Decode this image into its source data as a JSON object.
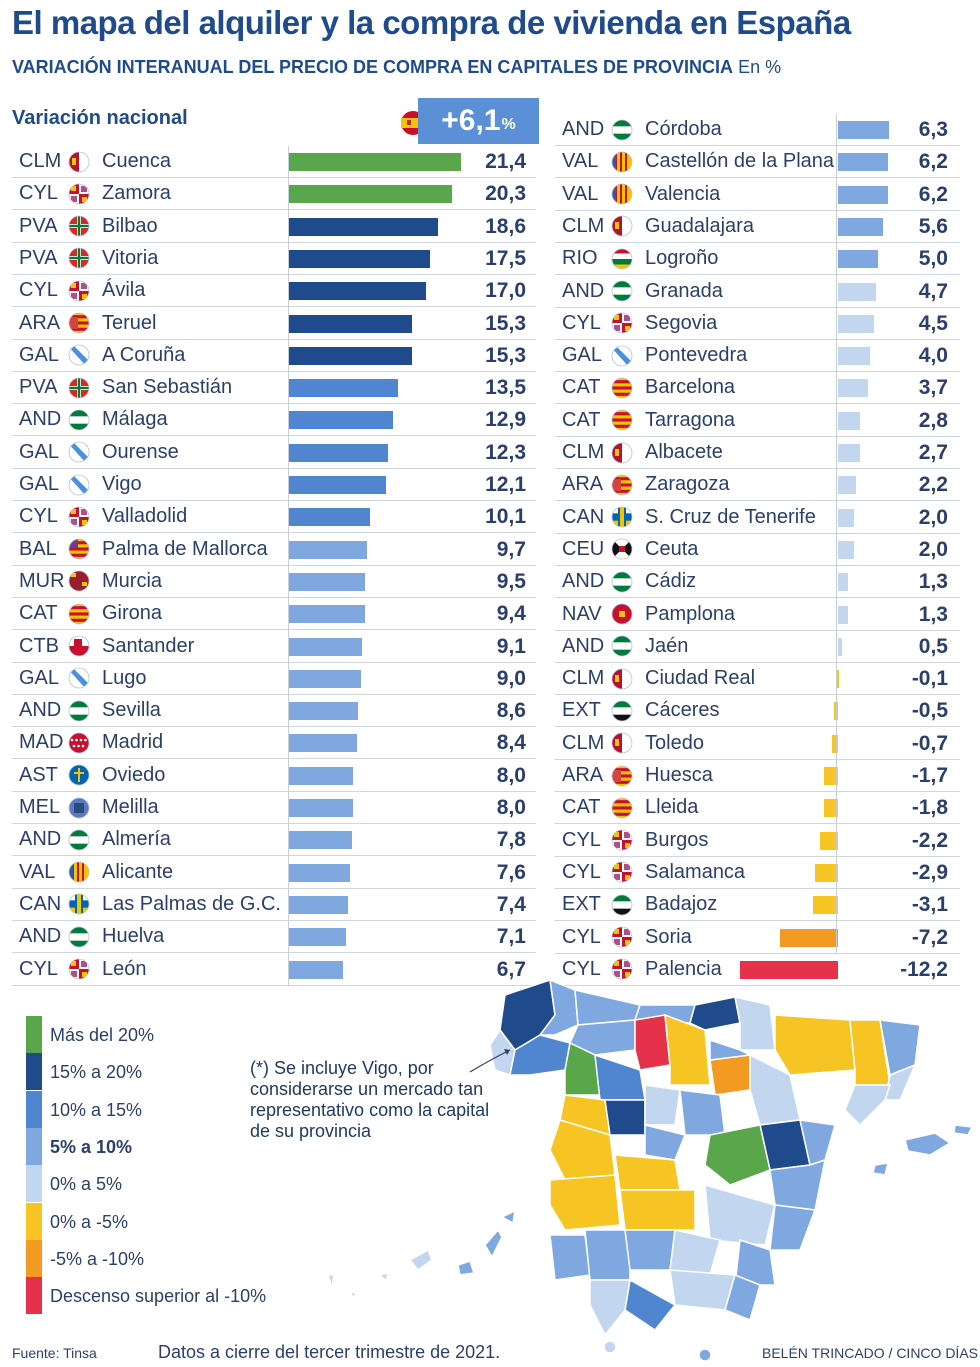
{
  "header": {
    "title": "El mapa del alquiler y la compra de vivienda en España",
    "subtitle_bold": "VARIACIÓN INTERANUAL DEL PRECIO DE COMPRA EN CAPITALES DE PROVINCIA",
    "subtitle_unit": "En %"
  },
  "national": {
    "label": "Variación nacional",
    "value": "+6,1",
    "unit": "%"
  },
  "chart_data": {
    "type": "bar",
    "title": "Variación interanual del precio de compra en capitales de provincia",
    "ylabel": "En %",
    "national_value": 6.1,
    "xlim": [
      -12.2,
      21.4
    ],
    "left_column": [
      {
        "code": "CLM",
        "city": "Cuenca",
        "value": 21.4,
        "label": "21,4",
        "flag": "clm",
        "color": "#5aa64a"
      },
      {
        "code": "CYL",
        "city": "Zamora",
        "value": 20.3,
        "label": "20,3",
        "flag": "cyl",
        "color": "#5aa64a"
      },
      {
        "code": "PVA",
        "city": "Bilbao",
        "value": 18.6,
        "label": "18,6",
        "flag": "pva",
        "color": "#1f4b8c"
      },
      {
        "code": "PVA",
        "city": "Vitoria",
        "value": 17.5,
        "label": "17,5",
        "flag": "pva",
        "color": "#1f4b8c"
      },
      {
        "code": "CYL",
        "city": "Ávila",
        "value": 17.0,
        "label": "17,0",
        "flag": "cyl",
        "color": "#1f4b8c"
      },
      {
        "code": "ARA",
        "city": "Teruel",
        "value": 15.3,
        "label": "15,3",
        "flag": "ara",
        "color": "#1f4b8c"
      },
      {
        "code": "GAL",
        "city": "A Coruña",
        "value": 15.3,
        "label": "15,3",
        "flag": "gal",
        "color": "#1f4b8c"
      },
      {
        "code": "PVA",
        "city": "San Sebastián",
        "value": 13.5,
        "label": "13,5",
        "flag": "pva",
        "color": "#4f86cf"
      },
      {
        "code": "AND",
        "city": "Málaga",
        "value": 12.9,
        "label": "12,9",
        "flag": "and",
        "color": "#4f86cf"
      },
      {
        "code": "GAL",
        "city": "Ourense",
        "value": 12.3,
        "label": "12,3",
        "flag": "gal",
        "color": "#4f86cf"
      },
      {
        "code": "GAL",
        "city": "Vigo",
        "value": 12.1,
        "label": "12,1",
        "flag": "gal",
        "color": "#4f86cf"
      },
      {
        "code": "CYL",
        "city": "Valladolid",
        "value": 10.1,
        "label": "10,1",
        "flag": "cyl",
        "color": "#4f86cf"
      },
      {
        "code": "BAL",
        "city": "Palma de Mallorca",
        "value": 9.7,
        "label": "9,7",
        "flag": "bal",
        "color": "#7fa7e0"
      },
      {
        "code": "MUR",
        "city": "Murcia",
        "value": 9.5,
        "label": "9,5",
        "flag": "mur",
        "color": "#7fa7e0"
      },
      {
        "code": "CAT",
        "city": "Girona",
        "value": 9.4,
        "label": "9,4",
        "flag": "cat",
        "color": "#7fa7e0"
      },
      {
        "code": "CTB",
        "city": "Santander",
        "value": 9.1,
        "label": "9,1",
        "flag": "ctb",
        "color": "#7fa7e0"
      },
      {
        "code": "GAL",
        "city": "Lugo",
        "value": 9.0,
        "label": "9,0",
        "flag": "gal",
        "color": "#7fa7e0"
      },
      {
        "code": "AND",
        "city": "Sevilla",
        "value": 8.6,
        "label": "8,6",
        "flag": "and",
        "color": "#7fa7e0"
      },
      {
        "code": "MAD",
        "city": "Madrid",
        "value": 8.4,
        "label": "8,4",
        "flag": "mad",
        "color": "#7fa7e0"
      },
      {
        "code": "AST",
        "city": "Oviedo",
        "value": 8.0,
        "label": "8,0",
        "flag": "ast",
        "color": "#7fa7e0"
      },
      {
        "code": "MEL",
        "city": "Melilla",
        "value": 8.0,
        "label": "8,0",
        "flag": "mel",
        "color": "#7fa7e0"
      },
      {
        "code": "AND",
        "city": "Almería",
        "value": 7.8,
        "label": "7,8",
        "flag": "and",
        "color": "#7fa7e0"
      },
      {
        "code": "VAL",
        "city": "Alicante",
        "value": 7.6,
        "label": "7,6",
        "flag": "val",
        "color": "#7fa7e0"
      },
      {
        "code": "CAN",
        "city": "Las Palmas de G.C.",
        "value": 7.4,
        "label": "7,4",
        "flag": "can",
        "color": "#7fa7e0"
      },
      {
        "code": "AND",
        "city": "Huelva",
        "value": 7.1,
        "label": "7,1",
        "flag": "and",
        "color": "#7fa7e0"
      },
      {
        "code": "CYL",
        "city": "León",
        "value": 6.7,
        "label": "6,7",
        "flag": "cyl",
        "color": "#7fa7e0"
      }
    ],
    "right_column": [
      {
        "code": "AND",
        "city": "Córdoba",
        "value": 6.3,
        "label": "6,3",
        "flag": "and",
        "color": "#7fa7e0"
      },
      {
        "code": "VAL",
        "city": "Castellón de la Plana",
        "value": 6.2,
        "label": "6,2",
        "flag": "val",
        "color": "#7fa7e0"
      },
      {
        "code": "VAL",
        "city": "Valencia",
        "value": 6.2,
        "label": "6,2",
        "flag": "val",
        "color": "#7fa7e0"
      },
      {
        "code": "CLM",
        "city": "Guadalajara",
        "value": 5.6,
        "label": "5,6",
        "flag": "clm",
        "color": "#7fa7e0"
      },
      {
        "code": "RIO",
        "city": "Logroño",
        "value": 5.0,
        "label": "5,0",
        "flag": "rio",
        "color": "#7fa7e0"
      },
      {
        "code": "AND",
        "city": "Granada",
        "value": 4.7,
        "label": "4,7",
        "flag": "and",
        "color": "#c3d6f0"
      },
      {
        "code": "CYL",
        "city": "Segovia",
        "value": 4.5,
        "label": "4,5",
        "flag": "cyl",
        "color": "#c3d6f0"
      },
      {
        "code": "GAL",
        "city": "Pontevedra",
        "value": 4.0,
        "label": "4,0",
        "flag": "gal",
        "color": "#c3d6f0"
      },
      {
        "code": "CAT",
        "city": "Barcelona",
        "value": 3.7,
        "label": "3,7",
        "flag": "cat",
        "color": "#c3d6f0"
      },
      {
        "code": "CAT",
        "city": "Tarragona",
        "value": 2.8,
        "label": "2,8",
        "flag": "cat",
        "color": "#c3d6f0"
      },
      {
        "code": "CLM",
        "city": "Albacete",
        "value": 2.7,
        "label": "2,7",
        "flag": "clm",
        "color": "#c3d6f0"
      },
      {
        "code": "ARA",
        "city": "Zaragoza",
        "value": 2.2,
        "label": "2,2",
        "flag": "ara",
        "color": "#c3d6f0"
      },
      {
        "code": "CAN",
        "city": "S. Cruz de Tenerife",
        "value": 2.0,
        "label": "2,0",
        "flag": "can",
        "color": "#c3d6f0"
      },
      {
        "code": "CEU",
        "city": "Ceuta",
        "value": 2.0,
        "label": "2,0",
        "flag": "ceu",
        "color": "#c3d6f0"
      },
      {
        "code": "AND",
        "city": "Cádiz",
        "value": 1.3,
        "label": "1,3",
        "flag": "and",
        "color": "#c3d6f0"
      },
      {
        "code": "NAV",
        "city": "Pamplona",
        "value": 1.3,
        "label": "1,3",
        "flag": "nav",
        "color": "#c3d6f0"
      },
      {
        "code": "AND",
        "city": "Jaén",
        "value": 0.5,
        "label": "0,5",
        "flag": "and",
        "color": "#c3d6f0"
      },
      {
        "code": "CLM",
        "city": "Ciudad Real",
        "value": -0.1,
        "label": "-0,1",
        "flag": "clm",
        "color": "#f6c423"
      },
      {
        "code": "EXT",
        "city": "Cáceres",
        "value": -0.5,
        "label": "-0,5",
        "flag": "ext",
        "color": "#f6c423"
      },
      {
        "code": "CLM",
        "city": "Toledo",
        "value": -0.7,
        "label": "-0,7",
        "flag": "clm",
        "color": "#f6c423"
      },
      {
        "code": "ARA",
        "city": "Huesca",
        "value": -1.7,
        "label": "-1,7",
        "flag": "ara",
        "color": "#f6c423"
      },
      {
        "code": "CAT",
        "city": "Lleida",
        "value": -1.8,
        "label": "-1,8",
        "flag": "cat",
        "color": "#f6c423"
      },
      {
        "code": "CYL",
        "city": "Burgos",
        "value": -2.2,
        "label": "-2,2",
        "flag": "cyl",
        "color": "#f6c423"
      },
      {
        "code": "CYL",
        "city": "Salamanca",
        "value": -2.9,
        "label": "-2,9",
        "flag": "cyl",
        "color": "#f6c423"
      },
      {
        "code": "EXT",
        "city": "Badajoz",
        "value": -3.1,
        "label": "-3,1",
        "flag": "ext",
        "color": "#f6c423"
      },
      {
        "code": "CYL",
        "city": "Soria",
        "value": -7.2,
        "label": "-7,2",
        "flag": "cyl",
        "color": "#f39a22"
      },
      {
        "code": "CYL",
        "city": "Palencia",
        "value": -12.2,
        "label": "-12,2",
        "flag": "cyl",
        "color": "#e5314a"
      }
    ]
  },
  "legend": [
    {
      "label": "Más del 20%",
      "color": "#5aa64a",
      "bold": false
    },
    {
      "label": "15% a 20%",
      "color": "#1f4b8c",
      "bold": false
    },
    {
      "label": "10% a 15%",
      "color": "#4f86cf",
      "bold": false
    },
    {
      "label": "5% a 10%",
      "color": "#7fa7e0",
      "bold": true
    },
    {
      "label": "0% a 5%",
      "color": "#c3d6f0",
      "bold": false
    },
    {
      "label": "0% a -5%",
      "color": "#f6c423",
      "bold": false
    },
    {
      "label": "-5% a -10%",
      "color": "#f39a22",
      "bold": false
    },
    {
      "label": "Descenso superior al -10%",
      "color": "#e5314a",
      "bold": false
    }
  ],
  "note": "(*) Se incluye Vigo, por considerarse un mercado tan representativo como la capital de su provincia",
  "footer": {
    "source": "Fuente: Tinsa",
    "date_note": "Datos a cierre del tercer trimestre de 2021.",
    "credit": "BELÉN TRINCADO / CINCO DÍAS"
  }
}
